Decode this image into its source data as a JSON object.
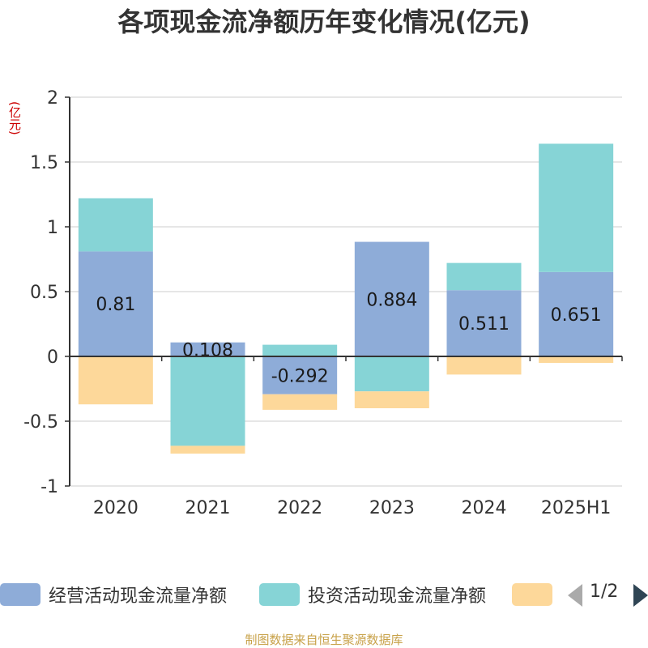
{
  "title": "各项现金流净额历年变化情况(亿元)",
  "y_unit": "(亿元)",
  "source": "制图数据来自恒生聚源数据库",
  "pager": "1/2",
  "colors": {
    "operating": "#8eacd8",
    "investing": "#86d4d6",
    "financing": "#fdd89a"
  },
  "chart_data": {
    "type": "bar",
    "stacked": true,
    "categories": [
      "2020",
      "2021",
      "2022",
      "2023",
      "2024",
      "2025H1"
    ],
    "ylim": [
      -1,
      2
    ],
    "yticks": [
      -1,
      -0.5,
      0,
      0.5,
      1,
      1.5,
      2
    ],
    "series": [
      {
        "name": "经营活动现金流量净额",
        "values": [
          0.81,
          0.108,
          -0.292,
          0.884,
          0.511,
          0.651
        ],
        "labels": [
          "0.81",
          "0.108",
          "-0.292",
          "0.884",
          "0.511",
          "0.651"
        ]
      },
      {
        "name": "投资活动现金流量净额",
        "values": [
          0.41,
          -0.69,
          0.09,
          -0.27,
          0.21,
          0.99
        ]
      },
      {
        "name": "",
        "values": [
          -0.37,
          -0.06,
          -0.12,
          -0.13,
          -0.14,
          -0.05
        ]
      }
    ],
    "legend_position": "bottom",
    "grid": true
  }
}
